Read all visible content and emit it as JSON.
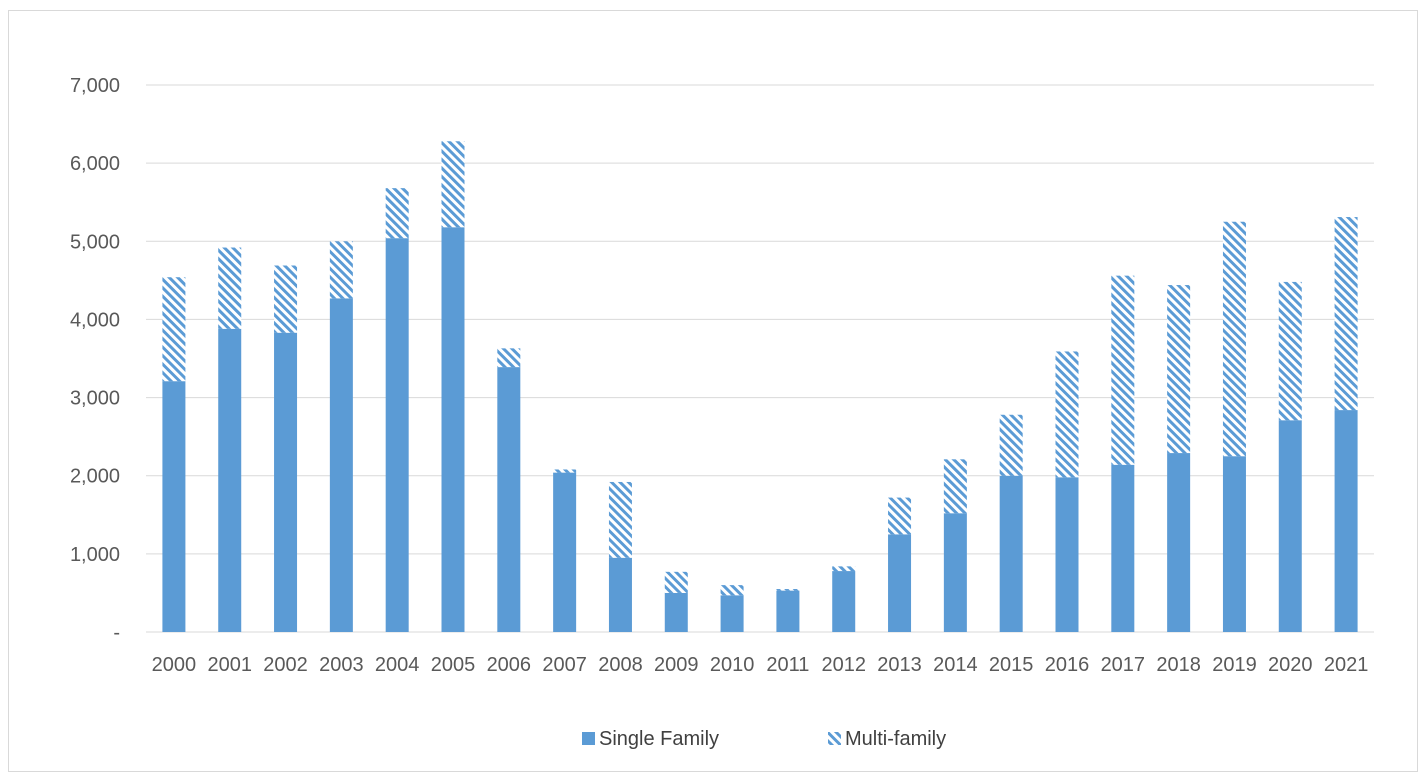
{
  "chart_data": {
    "type": "bar",
    "stacked": true,
    "categories": [
      "2000",
      "2001",
      "2002",
      "2003",
      "2004",
      "2005",
      "2006",
      "2007",
      "2008",
      "2009",
      "2010",
      "2011",
      "2012",
      "2013",
      "2014",
      "2015",
      "2016",
      "2017",
      "2018",
      "2019",
      "2020",
      "2021"
    ],
    "series": [
      {
        "name": "Single Family",
        "color": "#5b9bd5",
        "pattern": "solid",
        "values": [
          3210,
          3880,
          3830,
          4270,
          5040,
          5180,
          3390,
          2040,
          950,
          500,
          470,
          530,
          780,
          1250,
          1520,
          2000,
          1980,
          2140,
          2290,
          2250,
          2710,
          2840
        ]
      },
      {
        "name": "Multi-family",
        "color": "#5b9bd5",
        "pattern": "diagonal-stripes",
        "values": [
          1330,
          1040,
          860,
          730,
          640,
          1100,
          240,
          40,
          970,
          270,
          130,
          20,
          60,
          470,
          690,
          780,
          1610,
          2420,
          2150,
          3000,
          1770,
          2470
        ]
      }
    ],
    "yticks": [
      "-",
      "1,000",
      "2,000",
      "3,000",
      "4,000",
      "5,000",
      "6,000",
      "7,000"
    ],
    "ylim": [
      0,
      7000
    ],
    "grid": true,
    "legend_position": "bottom",
    "title": "",
    "xlabel": "",
    "ylabel": ""
  }
}
